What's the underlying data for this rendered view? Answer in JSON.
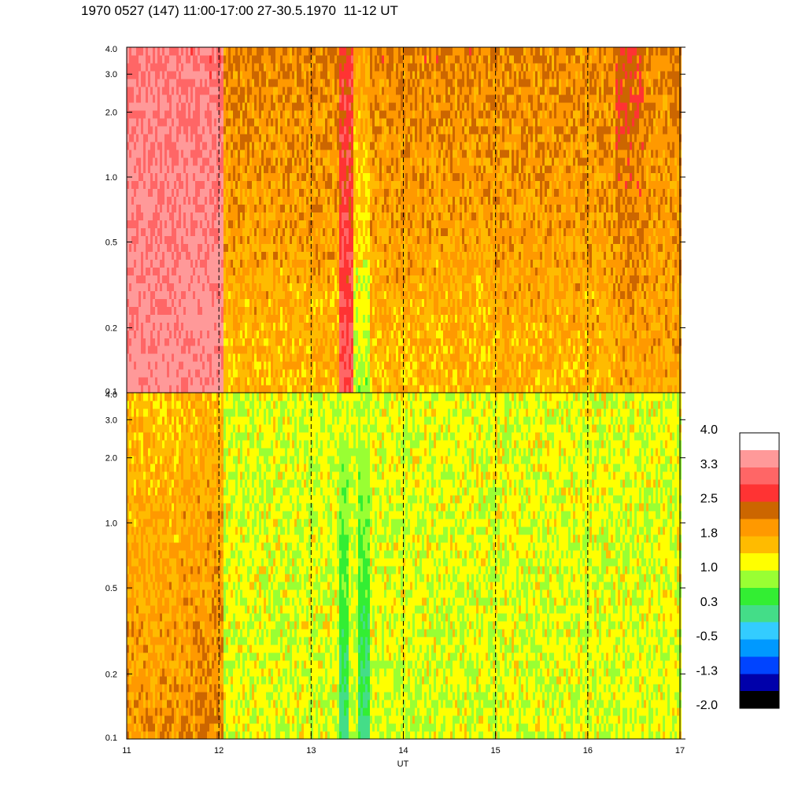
{
  "title": "1970 0527 (147) 11:00-17:00 27-30.5.1970  11-12 UT",
  "chart_data": {
    "type": "heatmap",
    "xlabel": "UT",
    "xlim": [
      11,
      17
    ],
    "x_ticks": [
      "11",
      "12",
      "13",
      "14",
      "15",
      "16",
      "17"
    ],
    "x_dashed_lines": [
      12,
      13,
      14,
      15,
      16
    ],
    "panels": [
      {
        "name": "",
        "ylim": [
          0.1,
          4.0
        ],
        "y_scale": "log",
        "y_ticks": [
          {
            "value": 0.1,
            "label": "0.1"
          },
          {
            "value": 0.2,
            "label": "0.2"
          },
          {
            "value": 0.5,
            "label": "0.5"
          },
          {
            "value": 1.0,
            "label": "1.0"
          },
          {
            "value": 2.0,
            "label": "2.0"
          },
          {
            "value": 3.0,
            "label": "3.0"
          },
          {
            "value": 4.0,
            "label": "4.0"
          }
        ],
        "segments": [
          {
            "x": [
              11.0,
              12.05
            ],
            "level_low": 1.0,
            "level_high": 1.7,
            "noise": 0.9
          },
          {
            "x": [
              12.05,
              13.3
            ],
            "level_low": 5.9,
            "level_high": 4.6,
            "noise": 1.1
          },
          {
            "x": [
              13.3,
              13.45
            ],
            "level_low": 2.4,
            "level_high": 3.2,
            "noise": 0.9
          },
          {
            "x": [
              13.45,
              13.65
            ],
            "level_low": 8.0,
            "level_high": 5.2,
            "noise": 0.8
          },
          {
            "x": [
              13.65,
              15.0
            ],
            "level_low": 6.0,
            "level_high": 4.5,
            "noise": 1.1
          },
          {
            "x": [
              15.0,
              16.3
            ],
            "level_low": 5.8,
            "level_high": 4.6,
            "noise": 1.1
          },
          {
            "x": [
              16.3,
              16.6
            ],
            "level_low": 5.5,
            "level_high": 3.6,
            "noise": 1.0
          },
          {
            "x": [
              16.6,
              17.0
            ],
            "level_low": 5.5,
            "level_high": 4.6,
            "noise": 1.0
          }
        ]
      },
      {
        "name": "",
        "ylim": [
          0.1,
          4.0
        ],
        "y_scale": "log",
        "y_ticks": [
          {
            "value": 0.1,
            "label": "0.1"
          },
          {
            "value": 0.2,
            "label": "0.2"
          },
          {
            "value": 0.5,
            "label": "0.5"
          },
          {
            "value": 1.0,
            "label": "1.0"
          },
          {
            "value": 2.0,
            "label": "2.0"
          },
          {
            "value": 3.0,
            "label": "3.0"
          },
          {
            "value": 4.0,
            "label": "4.0"
          }
        ],
        "segments": [
          {
            "x": [
              11.0,
              11.6
            ],
            "level_low": 5.0,
            "level_high": 6.0,
            "noise": 1.0
          },
          {
            "x": [
              11.6,
              12.05
            ],
            "level_low": 4.6,
            "level_high": 5.8,
            "noise": 1.0
          },
          {
            "x": [
              12.05,
              13.3
            ],
            "level_low": 7.2,
            "level_high": 7.3,
            "noise": 0.9
          },
          {
            "x": [
              13.3,
              13.4
            ],
            "level_low": 10.0,
            "level_high": 7.4,
            "noise": 0.6
          },
          {
            "x": [
              13.4,
              13.5
            ],
            "level_low": 7.4,
            "level_high": 7.4,
            "noise": 0.8
          },
          {
            "x": [
              13.5,
              13.65
            ],
            "level_low": 10.0,
            "level_high": 7.4,
            "noise": 0.6
          },
          {
            "x": [
              13.65,
              17.0
            ],
            "level_low": 7.3,
            "level_high": 7.2,
            "noise": 0.9
          }
        ]
      }
    ],
    "colorbar": {
      "labels": [
        "4.0",
        "3.3",
        "2.5",
        "1.8",
        "1.0",
        "0.3",
        "-0.5",
        "-1.3",
        "-2.0"
      ],
      "colors": [
        "#ffffff",
        "#ff9999",
        "#ff6666",
        "#ff3333",
        "#cc6600",
        "#ff9900",
        "#ffbb00",
        "#ffff00",
        "#99ff33",
        "#33ee33",
        "#44dd88",
        "#33ccff",
        "#0099ff",
        "#0044ff",
        "#0000aa",
        "#000000"
      ]
    }
  }
}
